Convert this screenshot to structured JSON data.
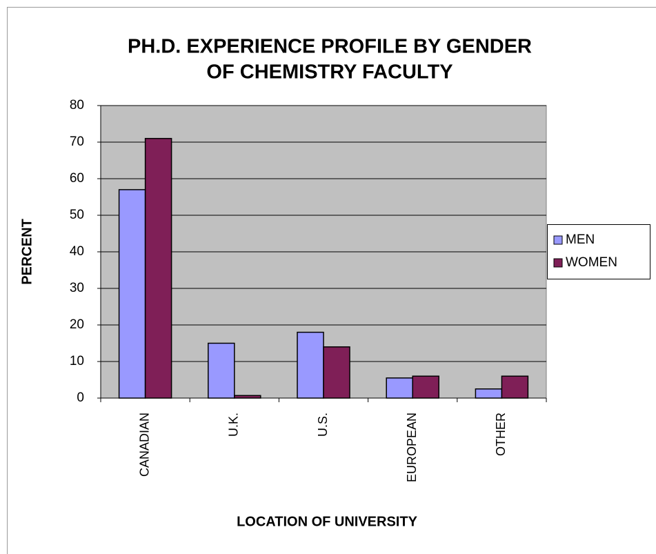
{
  "chart_data": {
    "type": "bar",
    "title": [
      "PH.D. EXPERIENCE PROFILE BY GENDER",
      "OF CHEMISTRY FACULTY"
    ],
    "x_label": "LOCATION OF UNIVERSITY",
    "y_label": "PERCENT",
    "categories": [
      "CANADIAN",
      "U.K.",
      "U.S.",
      "EUROPEAN",
      "OTHER"
    ],
    "series": [
      {
        "name": "MEN",
        "color": "#9999ff",
        "values": [
          57,
          15,
          18,
          5.5,
          2.5
        ]
      },
      {
        "name": "WOMEN",
        "color": "#7f1f57",
        "values": [
          71,
          0.7,
          14,
          6,
          6
        ]
      }
    ],
    "ylim": [
      0,
      80
    ],
    "yticks": [
      0,
      10,
      20,
      30,
      40,
      50,
      60,
      70,
      80
    ],
    "grid": true,
    "legend": "right",
    "plot_background": "#c0c0c0"
  }
}
